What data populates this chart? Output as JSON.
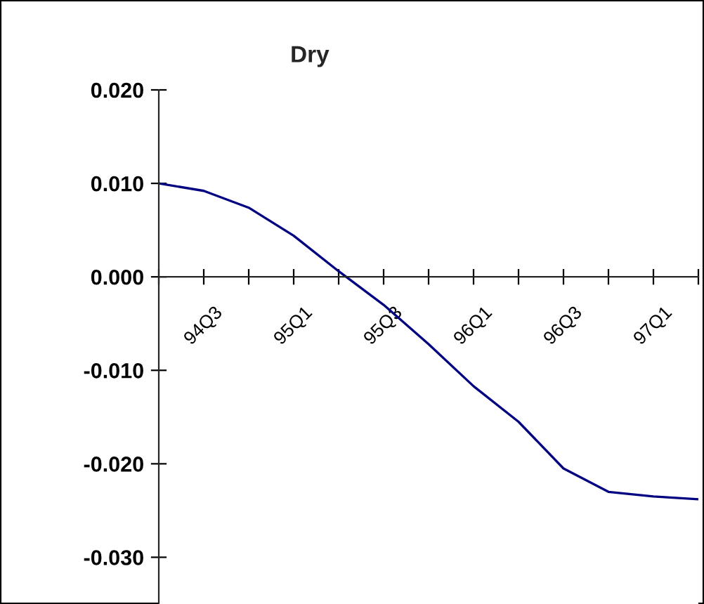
{
  "chart_data": {
    "type": "line",
    "title": "Dry",
    "categories": [
      null,
      "94Q3",
      null,
      "95Q1",
      null,
      "95Q3",
      null,
      "96Q1",
      null,
      "96Q3",
      null,
      "97Q1",
      null
    ],
    "series": [
      {
        "color": "#000080",
        "values": [
          0.01,
          0.0092,
          0.0074,
          0.0044,
          0.0006,
          -0.003,
          -0.0072,
          -0.0117,
          -0.0155,
          -0.0205,
          -0.023,
          -0.0235,
          -0.0238
        ]
      }
    ],
    "ylim": [
      -0.035,
      0.02
    ],
    "yticks": [
      {
        "value": 0.02,
        "label": "0.020"
      },
      {
        "value": 0.01,
        "label": "0.010"
      },
      {
        "value": 0,
        "label": "0.000"
      },
      {
        "value": -0.01,
        "label": "-0.010"
      },
      {
        "value": -0.02,
        "label": "-0.020"
      },
      {
        "value": -0.03,
        "label": "-0.030"
      }
    ],
    "grid": false,
    "legend": false,
    "marker": "none",
    "line_style": "solid"
  }
}
